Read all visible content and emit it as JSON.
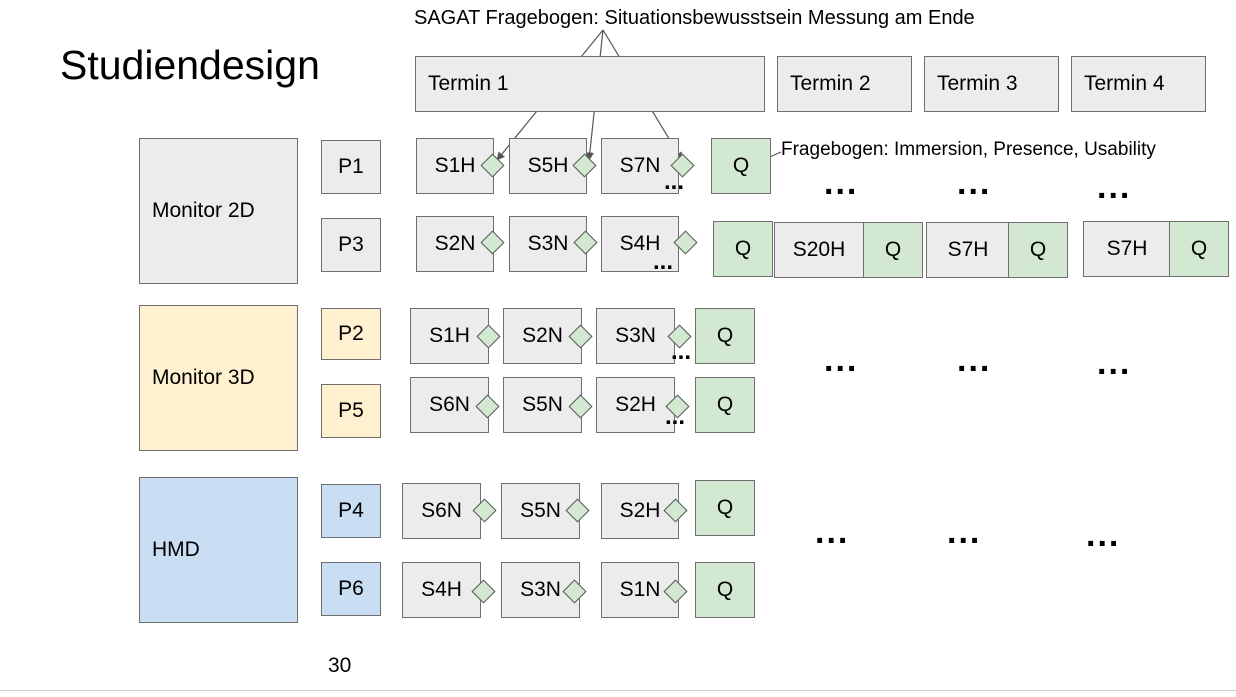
{
  "slide": {
    "title": "Studiendesign",
    "sagat_note": "SAGAT Fragebogen: Situationsbewusstsein Messung am Ende",
    "questionnaire_note": "Fragebogen: Immersion, Presence, Usability",
    "page_number": "30",
    "ellipsis": "...",
    "ellipsis_small": "..."
  },
  "termine": [
    "Termin 1",
    "Termin 2",
    "Termin 3",
    "Termin 4"
  ],
  "conditions": {
    "monitor2d": "Monitor 2D",
    "monitor3d": "Monitor 3D",
    "hmd": "HMD"
  },
  "participants": {
    "p1": {
      "label": "P1",
      "sessions": [
        "S1H",
        "S5H",
        "S7N"
      ],
      "q": "Q"
    },
    "p3": {
      "label": "P3",
      "sessions": [
        "S2N",
        "S3N",
        "S4H"
      ],
      "q": "Q",
      "later": [
        {
          "s": "S20H",
          "q": "Q"
        },
        {
          "s": "S7H",
          "q": "Q"
        },
        {
          "s": "S7H",
          "q": "Q"
        }
      ]
    },
    "p2": {
      "label": "P2",
      "sessions": [
        "S1H",
        "S2N",
        "S3N"
      ],
      "q": "Q"
    },
    "p5": {
      "label": "P5",
      "sessions": [
        "S6N",
        "S5N",
        "S2H"
      ],
      "q": "Q"
    },
    "p4": {
      "label": "P4",
      "sessions": [
        "S6N",
        "S5N",
        "S2H"
      ],
      "q": "Q"
    },
    "p6": {
      "label": "P6",
      "sessions": [
        "S4H",
        "S3N",
        "S1N"
      ],
      "q": "Q"
    }
  },
  "colors": {
    "grey": "#ececec",
    "green": "#d2e8d0",
    "yellow": "#fff1d0",
    "blue": "#c9def2",
    "border": "#6f6f6f"
  }
}
